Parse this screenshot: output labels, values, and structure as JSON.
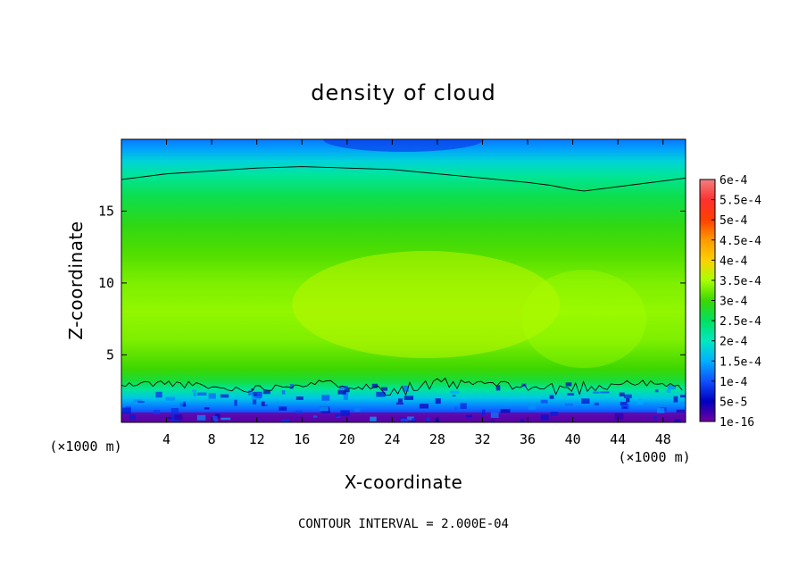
{
  "chart_data": {
    "type": "heatmap",
    "title": "density of cloud",
    "xlabel": "X-coordinate",
    "ylabel": "Z-coordinate",
    "x_unit": "(×1000 m)",
    "y_unit": "(×1000 m)",
    "xlim": [
      0,
      50
    ],
    "ylim": [
      0.3,
      20
    ],
    "x_ticks": [
      4,
      8,
      12,
      16,
      20,
      24,
      28,
      32,
      36,
      40,
      44,
      48
    ],
    "y_ticks": [
      5,
      10,
      15
    ],
    "x_tick_labels": [
      "4",
      "8",
      "12",
      "16",
      "20",
      "24",
      "28",
      "32",
      "36",
      "40",
      "44",
      "48"
    ],
    "y_tick_labels": [
      "5",
      "10",
      "15"
    ],
    "colorbar": {
      "labels": [
        "6e-4",
        "5.5e-4",
        "5e-4",
        "4.5e-4",
        "4e-4",
        "3.5e-4",
        "3e-4",
        "2.5e-4",
        "2e-4",
        "1.5e-4",
        "1e-4",
        "5e-5",
        "1e-16"
      ],
      "values": [
        0.0006,
        0.00055,
        0.0005,
        0.00045,
        0.0004,
        0.00035,
        0.0003,
        0.00025,
        0.0002,
        0.00015,
        0.0001,
        5e-05,
        1e-16
      ],
      "colors": [
        "#f08080",
        "#ff3030",
        "#ff4000",
        "#ff9a00",
        "#ffd000",
        "#a8ff00",
        "#3cd600",
        "#00e060",
        "#00e8c0",
        "#00b0ff",
        "#1050ff",
        "#0000c0",
        "#7000a0"
      ],
      "placement": "right"
    },
    "field_profile": {
      "z": [
        0.3,
        0.7,
        1.0,
        1.5,
        2.0,
        2.6,
        3.2,
        4.0,
        6.0,
        8.0,
        10.0,
        12.0,
        14.0,
        16.0,
        17.5,
        18.5,
        19.4,
        20.0
      ],
      "density": [
        5e-05,
        7e-05,
        0.0001,
        0.00013,
        0.00017,
        0.00022,
        0.00027,
        0.0003,
        0.00033,
        0.00034,
        0.00033,
        0.00031,
        0.00029,
        0.00026,
        0.00022,
        0.00018,
        0.00014,
        0.00012
      ]
    },
    "contour_interval": "2.000E-04",
    "contour_level": 0.0002,
    "upper_contour": {
      "x": [
        0,
        4,
        8,
        12,
        16,
        20,
        24,
        28,
        32,
        36,
        38,
        40,
        41,
        42,
        44,
        46,
        48,
        50
      ],
      "z": [
        17.2,
        17.6,
        17.8,
        18.0,
        18.1,
        18.0,
        17.9,
        17.6,
        17.3,
        17.0,
        16.8,
        16.5,
        16.4,
        16.5,
        16.7,
        16.9,
        17.1,
        17.3
      ]
    },
    "lower_contour_mean_z": 2.8
  },
  "footer": {
    "contour_interval_label": "CONTOUR INTERVAL = 2.000E-04"
  }
}
